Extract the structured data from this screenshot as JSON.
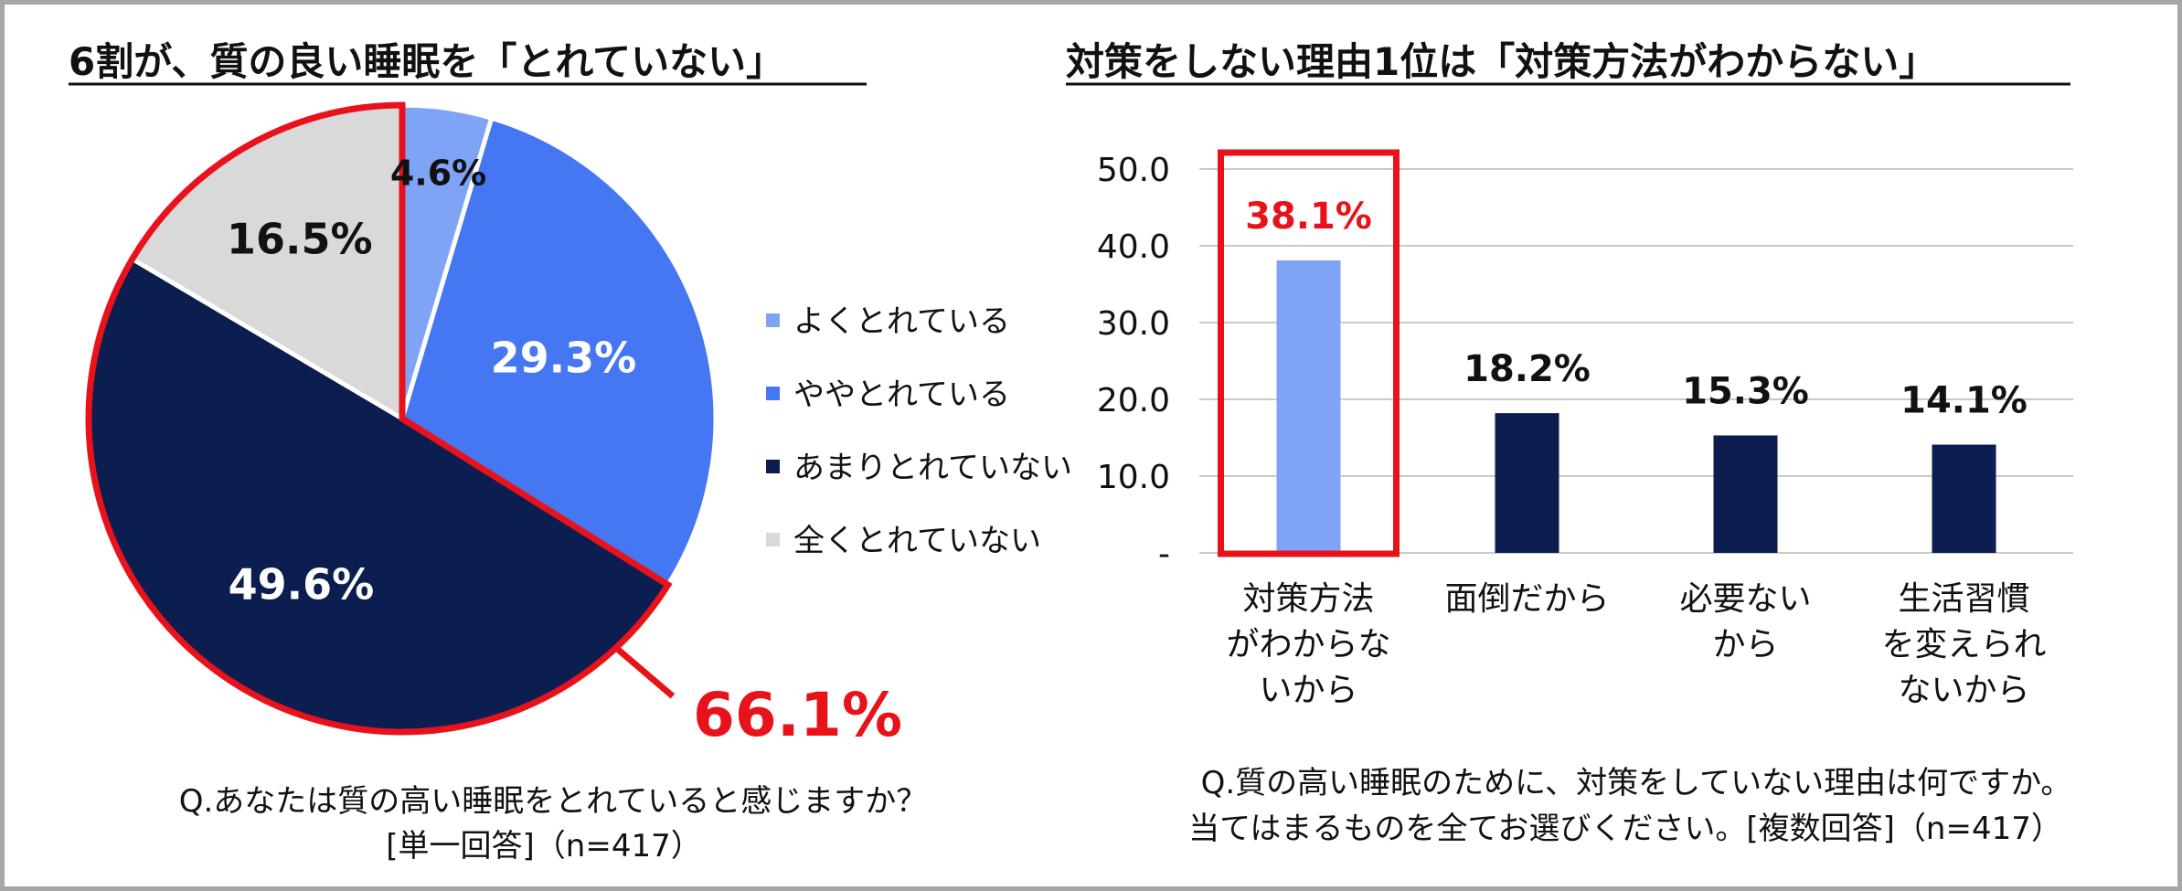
{
  "chart_data": [
    {
      "type": "pie",
      "title": "6割が、質の良い睡眠を「とれていない」",
      "categories": [
        "よくとれている",
        "ややとれている",
        "あまりとれていない",
        "全くとれていない"
      ],
      "values": [
        4.6,
        29.3,
        49.6,
        16.5
      ],
      "value_labels": [
        "4.6%",
        "29.3%",
        "49.6%",
        "16.5%"
      ],
      "colors": [
        "#7fa3f5",
        "#4577f2",
        "#0c1d4f",
        "#d9d9d9"
      ],
      "label_colors": [
        "#111111",
        "#ffffff",
        "#ffffff",
        "#111111"
      ],
      "legend": "right",
      "highlight": {
        "categories": [
          "あまりとれていない",
          "全くとれていない"
        ],
        "label": "66.1%",
        "color": "#e8121a"
      },
      "question": "Q.あなたは質の高い睡眠をとれていると感じますか？",
      "answer_info": "[単一回答]（n=417）"
    },
    {
      "type": "bar",
      "title": "対策をしない理由1位は「対策方法がわからない」",
      "categories": [
        [
          "対策方法",
          "がわからな",
          "いから"
        ],
        [
          "面倒だから"
        ],
        [
          "必要ない",
          "から"
        ],
        [
          "生活習慣",
          "を変えられ",
          "ないから"
        ]
      ],
      "values": [
        38.1,
        18.2,
        15.3,
        14.1
      ],
      "value_labels": [
        "38.1%",
        "18.2%",
        "15.3%",
        "14.1%"
      ],
      "colors": [
        "#7fa3f5",
        "#0c1d4f",
        "#0c1d4f",
        "#0c1d4f"
      ],
      "value_label_colors": [
        "#e8121a",
        "#111111",
        "#111111",
        "#111111"
      ],
      "highlight_index": 0,
      "highlight_color": "#e8121a",
      "ylim": [
        0,
        50
      ],
      "yticks": [
        "-",
        "10.0",
        "20.0",
        "30.0",
        "40.0",
        "50.0"
      ],
      "grid": true,
      "question_line1": "Q.質の高い睡眠のために、対策をしていない理由は何ですか。",
      "question_line2": "当てはまるものを全てお選びください。[複数回答]（n=417）"
    }
  ]
}
